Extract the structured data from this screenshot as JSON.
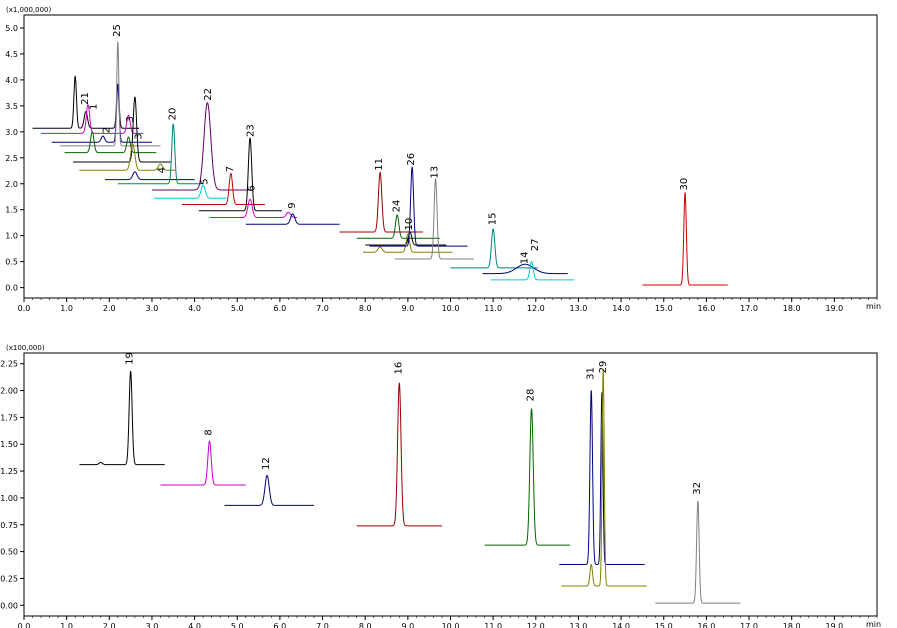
{
  "chart_data": [
    {
      "type": "line",
      "panel": "top",
      "y_multiplier": "(x1,000,000)",
      "xunit": "min",
      "xlim": [
        0,
        20
      ],
      "ylim": [
        -0.2,
        5.25
      ],
      "xticks": [
        0.0,
        1.0,
        2.0,
        3.0,
        4.0,
        5.0,
        6.0,
        7.0,
        8.0,
        9.0,
        10.0,
        11.0,
        12.0,
        13.0,
        14.0,
        15.0,
        16.0,
        17.0,
        18.0,
        19.0
      ],
      "xtick_labels": [
        "0.0",
        "1.0",
        "2.0",
        "3.0",
        "4.0",
        "5.0",
        "6.0",
        "7.0",
        "8.0",
        "9.0",
        "10.0",
        "11.0",
        "12.0",
        "13.0",
        "14.0",
        "15.0",
        "16.0",
        "17.0",
        "18.0",
        "19.0"
      ],
      "yticks": [
        0.0,
        0.5,
        1.0,
        1.5,
        2.0,
        2.5,
        3.0,
        3.5,
        4.0,
        4.5,
        5.0
      ],
      "ytick_labels": [
        "0.0",
        "0.5",
        "1.0",
        "1.5",
        "2.0",
        "2.5",
        "3.0",
        "3.5",
        "4.0",
        "4.5",
        "5.0"
      ],
      "series": [
        {
          "color": "#000000",
          "x0": 0.2,
          "x1": 2.7,
          "baseline": 3.07,
          "peaks": [
            {
              "x": 1.2,
              "h": 1.0,
              "w": 0.03
            },
            {
              "x": 1.45,
              "h": 0.32,
              "w": 0.04
            },
            {
              "x": 2.2,
              "h": 0.85,
              "w": 0.03
            }
          ]
        },
        {
          "color": "#cc00cc",
          "x0": 0.4,
          "x1": 2.8,
          "baseline": 2.97,
          "peaks": [
            {
              "x": 1.5,
              "h": 0.55,
              "w": 0.04
            },
            {
              "x": 2.45,
              "h": 0.35,
              "w": 0.04
            }
          ]
        },
        {
          "color": "#000080",
          "x0": 0.65,
          "x1": 3.0,
          "baseline": 2.8,
          "peaks": [
            {
              "x": 2.2,
              "h": 1.1,
              "w": 0.03
            },
            {
              "x": 1.85,
              "h": 0.12,
              "w": 0.04
            }
          ]
        },
        {
          "color": "#808080",
          "x0": 0.85,
          "x1": 3.2,
          "baseline": 2.73,
          "peaks": [
            {
              "x": 2.2,
              "h": 2.0,
              "w": 0.025
            }
          ]
        },
        {
          "color": "#006400",
          "x0": 0.95,
          "x1": 3.1,
          "baseline": 2.6,
          "peaks": [
            {
              "x": 1.6,
              "h": 0.4,
              "w": 0.04
            },
            {
              "x": 2.45,
              "h": 0.3,
              "w": 0.04
            }
          ]
        },
        {
          "color": "#000000",
          "x0": 1.15,
          "x1": 3.45,
          "baseline": 2.42,
          "peaks": [
            {
              "x": 2.6,
              "h": 1.25,
              "w": 0.04
            }
          ]
        },
        {
          "color": "#808000",
          "x0": 1.3,
          "x1": 3.55,
          "baseline": 2.26,
          "peaks": [
            {
              "x": 2.55,
              "h": 0.5,
              "w": 0.05
            },
            {
              "x": 3.2,
              "h": 0.12,
              "w": 0.05
            }
          ]
        },
        {
          "color": "#000080",
          "x0": 1.9,
          "x1": 4.0,
          "baseline": 2.08,
          "peaks": [
            {
              "x": 2.6,
              "h": 0.15,
              "w": 0.05
            }
          ]
        },
        {
          "color": "#008080",
          "x0": 2.2,
          "x1": 4.2,
          "baseline": 2.0,
          "peaks": [
            {
              "x": 3.5,
              "h": 1.15,
              "w": 0.035
            }
          ]
        },
        {
          "color": "#660066",
          "x0": 3.0,
          "x1": 5.3,
          "baseline": 1.88,
          "peaks": [
            {
              "x": 4.3,
              "h": 1.68,
              "w": 0.08
            }
          ]
        },
        {
          "color": "#00cccc",
          "x0": 3.05,
          "x1": 4.75,
          "baseline": 1.72,
          "peaks": [
            {
              "x": 4.2,
              "h": 0.25,
              "w": 0.05
            }
          ]
        },
        {
          "color": "#cc0000",
          "x0": 3.7,
          "x1": 5.65,
          "baseline": 1.6,
          "peaks": [
            {
              "x": 4.85,
              "h": 0.6,
              "w": 0.04
            }
          ]
        },
        {
          "color": "#000000",
          "x0": 4.1,
          "x1": 6.05,
          "baseline": 1.48,
          "peaks": [
            {
              "x": 5.3,
              "h": 1.4,
              "w": 0.04
            }
          ]
        },
        {
          "color": "#cc00cc",
          "x0": 4.35,
          "x1": 6.4,
          "baseline": 1.35,
          "peaks": [
            {
              "x": 5.3,
              "h": 0.35,
              "w": 0.05
            },
            {
              "x": 6.2,
              "h": 0.1,
              "w": 0.05
            }
          ]
        },
        {
          "color": "#000080",
          "x0": 5.2,
          "x1": 7.4,
          "baseline": 1.22,
          "peaks": [
            {
              "x": 6.3,
              "h": 0.2,
              "w": 0.05
            }
          ]
        },
        {
          "color": "#990000",
          "x0": 7.4,
          "x1": 9.35,
          "baseline": 1.07,
          "peaks": [
            {
              "x": 8.35,
              "h": 1.15,
              "w": 0.04
            }
          ]
        },
        {
          "color": "#006400",
          "x0": 7.8,
          "x1": 9.75,
          "baseline": 0.95,
          "peaks": [
            {
              "x": 8.75,
              "h": 0.45,
              "w": 0.04
            }
          ]
        },
        {
          "color": "#000000",
          "x0": 8.0,
          "x1": 9.9,
          "baseline": 0.82,
          "peaks": [
            {
              "x": 9.05,
              "h": 0.25,
              "w": 0.04
            }
          ]
        },
        {
          "color": "#808000",
          "x0": 7.95,
          "x1": 10.05,
          "baseline": 0.68,
          "peaks": [
            {
              "x": 8.35,
              "h": 0.1,
              "w": 0.05
            },
            {
              "x": 9.0,
              "h": 0.35,
              "w": 0.04
            }
          ]
        },
        {
          "color": "#000080",
          "x0": 8.1,
          "x1": 10.4,
          "baseline": 0.8,
          "peaks": [
            {
              "x": 9.1,
              "h": 1.52,
              "w": 0.035
            }
          ]
        },
        {
          "color": "#808080",
          "x0": 8.7,
          "x1": 10.55,
          "baseline": 0.55,
          "peaks": [
            {
              "x": 9.65,
              "h": 1.55,
              "w": 0.035
            }
          ]
        },
        {
          "color": "#008080",
          "x0": 10.0,
          "x1": 12.05,
          "baseline": 0.38,
          "peaks": [
            {
              "x": 11.0,
              "h": 0.75,
              "w": 0.04
            }
          ]
        },
        {
          "color": "#000080",
          "x0": 10.75,
          "x1": 12.75,
          "baseline": 0.27,
          "peaks": [
            {
              "x": 11.75,
              "h": 0.18,
              "w": 0.2
            }
          ]
        },
        {
          "color": "#00cccc",
          "x0": 10.95,
          "x1": 12.9,
          "baseline": 0.15,
          "peaks": [
            {
              "x": 11.9,
              "h": 0.35,
              "w": 0.04
            }
          ]
        },
        {
          "color": "#cc0000",
          "x0": 14.5,
          "x1": 16.5,
          "baseline": 0.05,
          "peaks": [
            {
              "x": 15.5,
              "h": 1.78,
              "w": 0.03
            }
          ]
        }
      ],
      "annotations": [
        {
          "text": "21",
          "x": 1.5,
          "y": 3.52
        },
        {
          "text": "1",
          "x": 1.7,
          "y": 3.42
        },
        {
          "text": "25",
          "x": 2.25,
          "y": 4.83
        },
        {
          "text": "2",
          "x": 2.0,
          "y": 2.97
        },
        {
          "text": "3",
          "x": 2.55,
          "y": 3.18
        },
        {
          "text": "3",
          "x": 2.75,
          "y": 2.85
        },
        {
          "text": "20",
          "x": 3.55,
          "y": 3.22
        },
        {
          "text": "4",
          "x": 3.3,
          "y": 2.2
        },
        {
          "text": "22",
          "x": 4.38,
          "y": 3.6
        },
        {
          "text": "5",
          "x": 4.3,
          "y": 1.98
        },
        {
          "text": "7",
          "x": 4.9,
          "y": 2.22
        },
        {
          "text": "23",
          "x": 5.38,
          "y": 2.9
        },
        {
          "text": "6",
          "x": 5.4,
          "y": 1.85
        },
        {
          "text": "9",
          "x": 6.35,
          "y": 1.52
        },
        {
          "text": "11",
          "x": 8.4,
          "y": 2.25
        },
        {
          "text": "24",
          "x": 8.8,
          "y": 1.45
        },
        {
          "text": "26",
          "x": 9.15,
          "y": 2.35
        },
        {
          "text": "10",
          "x": 9.1,
          "y": 1.1
        },
        {
          "text": "13",
          "x": 9.7,
          "y": 2.1
        },
        {
          "text": "15",
          "x": 11.05,
          "y": 1.2
        },
        {
          "text": "14",
          "x": 11.8,
          "y": 0.45
        },
        {
          "text": "27",
          "x": 12.05,
          "y": 0.7
        },
        {
          "text": "30",
          "x": 15.55,
          "y": 1.87
        }
      ]
    },
    {
      "type": "line",
      "panel": "bottom",
      "y_multiplier": "(x100,000)",
      "xunit": "min",
      "xlim": [
        0,
        20
      ],
      "ylim": [
        -0.1,
        2.35
      ],
      "xticks": [
        0.0,
        1.0,
        2.0,
        3.0,
        4.0,
        5.0,
        6.0,
        7.0,
        8.0,
        9.0,
        10.0,
        11.0,
        12.0,
        13.0,
        14.0,
        15.0,
        16.0,
        17.0,
        18.0,
        19.0
      ],
      "xtick_labels": [
        "0.0",
        "1.0",
        "2.0",
        "3.0",
        "4.0",
        "5.0",
        "6.0",
        "7.0",
        "8.0",
        "9.0",
        "10.0",
        "11.0",
        "12.0",
        "13.0",
        "14.0",
        "15.0",
        "16.0",
        "17.0",
        "18.0",
        "19.0"
      ],
      "yticks": [
        0.0,
        0.25,
        0.5,
        0.75,
        1.0,
        1.25,
        1.5,
        1.75,
        2.0,
        2.25
      ],
      "ytick_labels": [
        "0.00",
        "0.25",
        "0.50",
        "0.75",
        "1.00",
        "1.25",
        "1.50",
        "1.75",
        "2.00",
        "2.25"
      ],
      "series": [
        {
          "color": "#000000",
          "x0": 1.3,
          "x1": 3.3,
          "baseline": 1.31,
          "peaks": [
            {
              "x": 1.8,
              "h": 0.02,
              "w": 0.04
            },
            {
              "x": 2.5,
              "h": 0.87,
              "w": 0.035
            }
          ]
        },
        {
          "color": "#cc00cc",
          "x0": 3.2,
          "x1": 5.2,
          "baseline": 1.12,
          "peaks": [
            {
              "x": 4.35,
              "h": 0.41,
              "w": 0.04
            }
          ]
        },
        {
          "color": "#000080",
          "x0": 4.7,
          "x1": 6.8,
          "baseline": 0.93,
          "peaks": [
            {
              "x": 5.7,
              "h": 0.28,
              "w": 0.05
            }
          ]
        },
        {
          "color": "#990000",
          "x0": 7.8,
          "x1": 9.8,
          "baseline": 0.74,
          "peaks": [
            {
              "x": 8.8,
              "h": 1.33,
              "w": 0.04
            }
          ]
        },
        {
          "color": "#006400",
          "x0": 10.8,
          "x1": 12.8,
          "baseline": 0.56,
          "peaks": [
            {
              "x": 11.9,
              "h": 1.27,
              "w": 0.04
            }
          ]
        },
        {
          "color": "#000080",
          "x0": 12.55,
          "x1": 14.55,
          "baseline": 0.38,
          "peaks": [
            {
              "x": 13.3,
              "h": 1.62,
              "w": 0.03
            },
            {
              "x": 13.55,
              "h": 1.6,
              "w": 0.025
            }
          ]
        },
        {
          "color": "#808000",
          "x0": 12.6,
          "x1": 14.6,
          "baseline": 0.18,
          "peaks": [
            {
              "x": 13.3,
              "h": 0.2,
              "w": 0.03
            },
            {
              "x": 13.58,
              "h": 2.02,
              "w": 0.025
            }
          ]
        },
        {
          "color": "#808080",
          "x0": 14.8,
          "x1": 16.8,
          "baseline": 0.02,
          "peaks": [
            {
              "x": 15.8,
              "h": 0.95,
              "w": 0.03
            }
          ]
        }
      ],
      "annotations": [
        {
          "text": "19",
          "x": 2.55,
          "y": 2.24
        },
        {
          "text": "8",
          "x": 4.4,
          "y": 1.58
        },
        {
          "text": "12",
          "x": 5.75,
          "y": 1.26
        },
        {
          "text": "16",
          "x": 8.85,
          "y": 2.15
        },
        {
          "text": "28",
          "x": 11.95,
          "y": 1.9
        },
        {
          "text": "31",
          "x": 13.35,
          "y": 2.1
        },
        {
          "text": "29",
          "x": 13.65,
          "y": 2.16
        },
        {
          "text": "32",
          "x": 15.85,
          "y": 1.03
        }
      ]
    }
  ]
}
